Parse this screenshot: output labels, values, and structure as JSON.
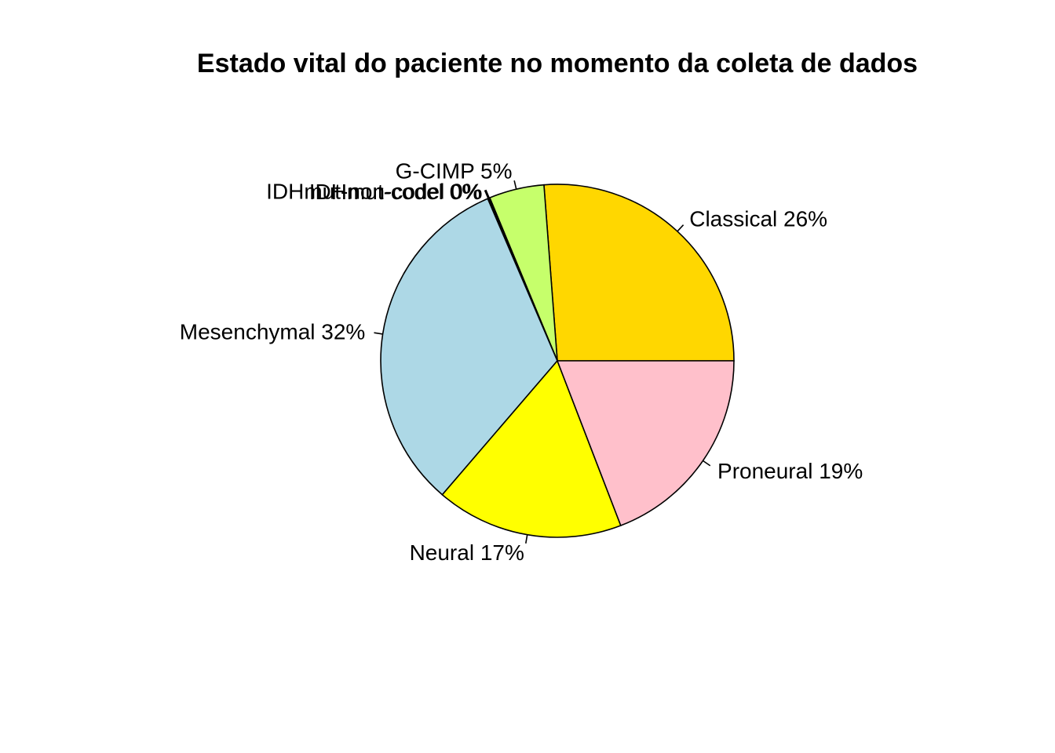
{
  "chart_data": {
    "type": "pie",
    "title": "Estado vital do paciente no momento da coleta de dados",
    "slices": [
      {
        "label": "Classical 26%",
        "value": 26,
        "color": "#FFD700"
      },
      {
        "label": "G-CIMP 5%",
        "value": 5,
        "color": "#C6FF6B"
      },
      {
        "label": "IDHmut-non-codel 0%",
        "value": 0.1,
        "color": "#FFFFFF"
      },
      {
        "label": "IDHmut-codel 0%",
        "value": 0.1,
        "color": "#FFFFFF"
      },
      {
        "label": "Mesenchymal 32%",
        "value": 32,
        "color": "#ADD8E6"
      },
      {
        "label": "Neural 17%",
        "value": 17,
        "color": "#FFFF00"
      },
      {
        "label": "Proneural 19%",
        "value": 19,
        "color": "#FFC0CB"
      }
    ],
    "start_angle_deg": 0,
    "direction": "counterclockwise"
  }
}
